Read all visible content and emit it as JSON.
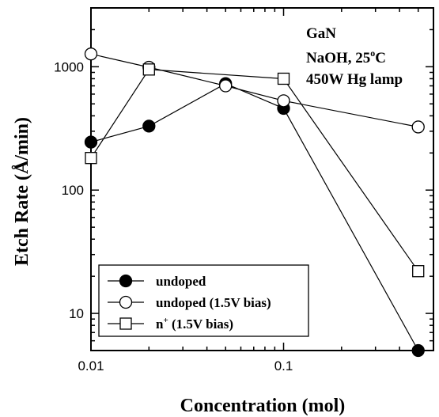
{
  "chart_data": {
    "type": "line",
    "xscale": "log",
    "yscale": "log",
    "xlim": [
      0.01,
      0.6
    ],
    "ylim": [
      5,
      3000
    ],
    "xlabel": "Concentration (mol)",
    "ylabel": "Etch Rate (Å/min)",
    "xticks": [
      {
        "value": 0.01,
        "label": "0.01"
      },
      {
        "value": 0.1,
        "label": "0.1"
      }
    ],
    "yticks": [
      {
        "value": 10,
        "label": "10"
      },
      {
        "value": 100,
        "label": "100"
      },
      {
        "value": 1000,
        "label": "1000"
      }
    ],
    "annotations": [
      {
        "text": "GaN"
      },
      {
        "text": "NaOH, 25",
        "sup": "o",
        "suffix": "C"
      },
      {
        "text": "450W Hg lamp"
      }
    ],
    "series": [
      {
        "name": "undoped",
        "marker": "filled-circle",
        "x": [
          0.01,
          0.02,
          0.05,
          0.1,
          0.5
        ],
        "y": [
          245,
          330,
          730,
          460,
          5
        ]
      },
      {
        "name": "undoped (1.5V bias)",
        "marker": "open-circle",
        "x": [
          0.01,
          0.02,
          0.05,
          0.1,
          0.5
        ],
        "y": [
          1270,
          990,
          700,
          530,
          325
        ]
      },
      {
        "name_prefix": "n",
        "name_sup": "+",
        "name_suffix": " (1.5V bias)",
        "marker": "open-square",
        "x": [
          0.01,
          0.02,
          0.1,
          0.5
        ],
        "y": [
          182,
          950,
          800,
          22
        ]
      }
    ],
    "legend_position": "bottom-left",
    "grid": false
  }
}
